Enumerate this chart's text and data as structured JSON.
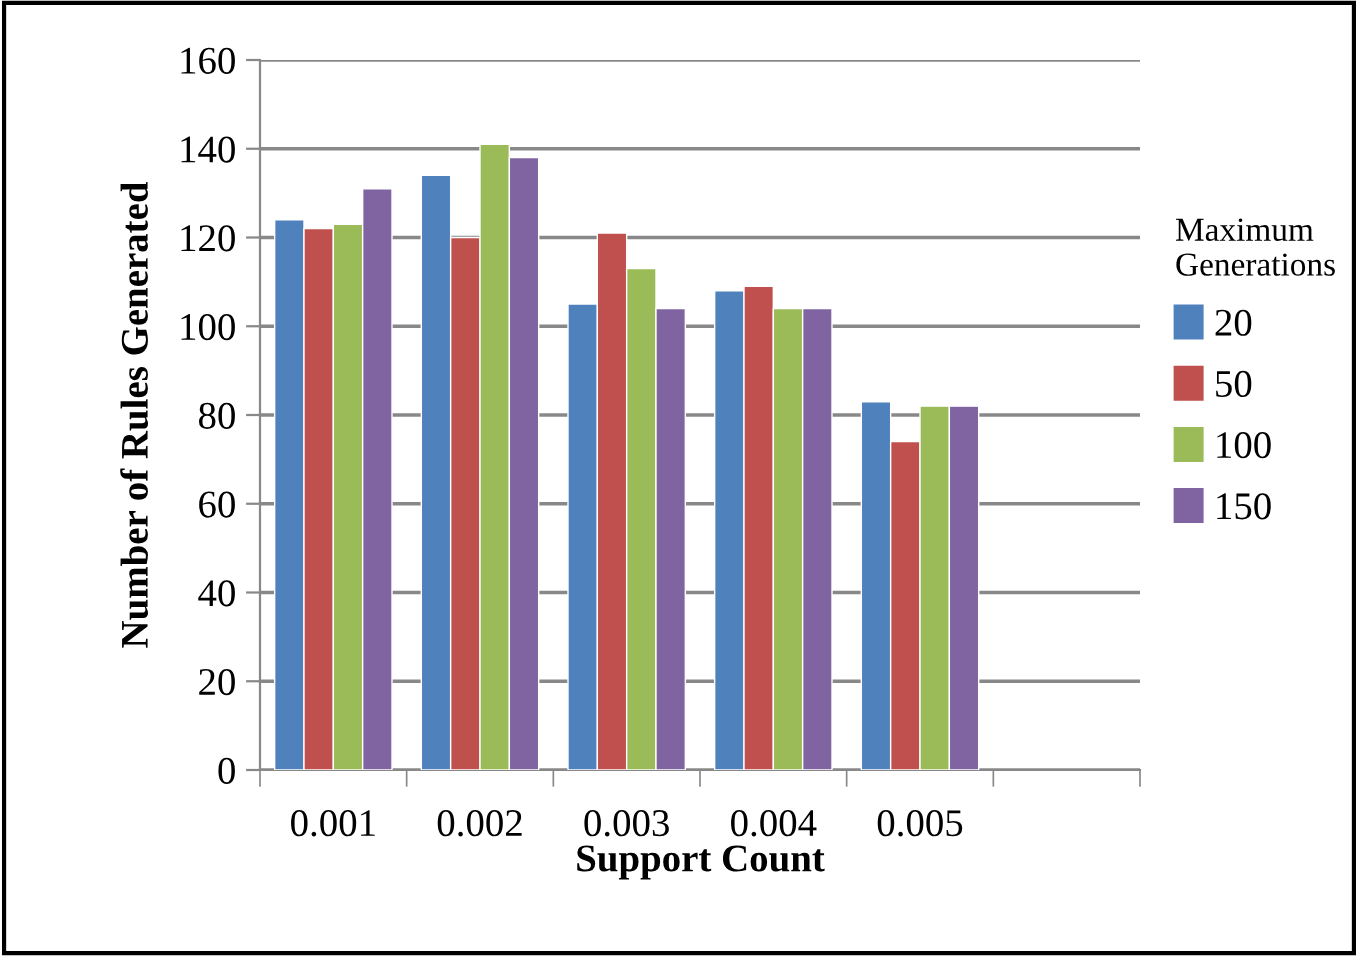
{
  "chart_data": {
    "type": "bar",
    "xlabel": "Support Count",
    "ylabel": "Number of Rules Generated",
    "legend_title": "Maximum\nGenerations",
    "categories": [
      "0.001",
      "0.002",
      "0.003",
      "0.004",
      "0.005",
      null
    ],
    "series": [
      {
        "name": "20",
        "color": "#4f81bd",
        "values": [
          124,
          134,
          105,
          108,
          83,
          null
        ]
      },
      {
        "name": "50",
        "color": "#c0504d",
        "values": [
          122,
          120,
          121,
          109,
          74,
          null
        ]
      },
      {
        "name": "100",
        "color": "#9bbb59",
        "values": [
          123,
          141,
          113,
          104,
          82,
          null
        ]
      },
      {
        "name": "150",
        "color": "#8064a2",
        "values": [
          131,
          138,
          104,
          104,
          82,
          null
        ]
      }
    ],
    "ylim": [
      0,
      160
    ],
    "yticks": [
      0,
      20,
      40,
      60,
      80,
      100,
      120,
      140,
      160
    ],
    "grid": "y",
    "legend": "right"
  }
}
